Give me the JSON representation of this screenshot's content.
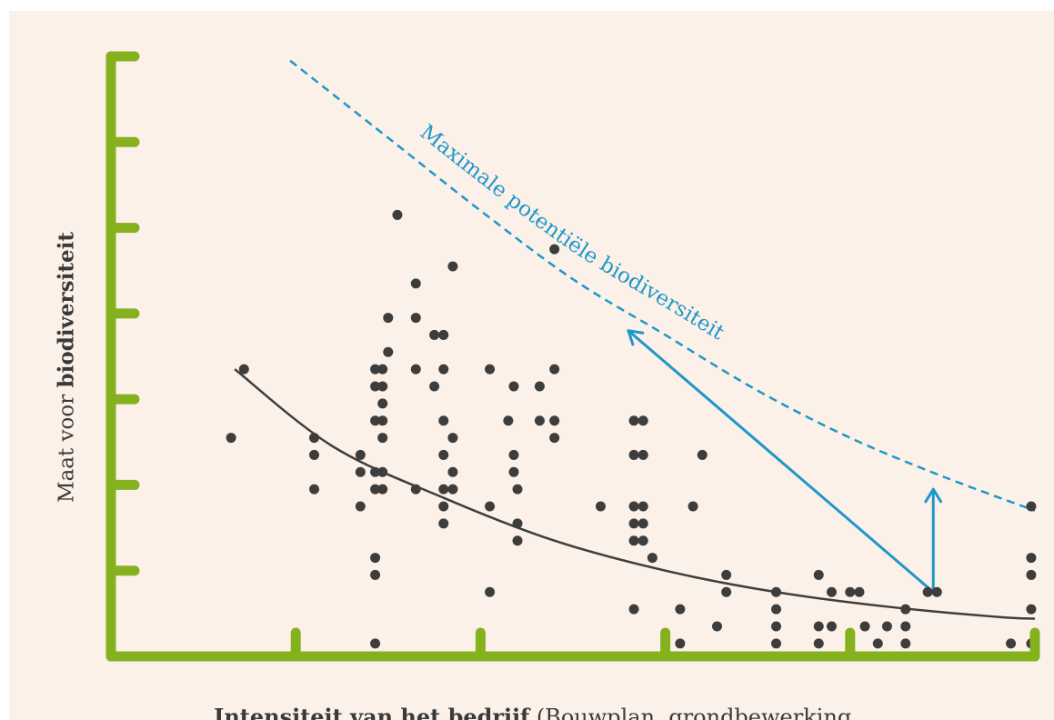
{
  "chart_data": {
    "type": "scatter",
    "title": "",
    "xlabel": "Intensiteit van het bedrijf (Bouwplan, grondbewerking,",
    "xlabel_parts": {
      "bold": "Intensiteit van het bedrijf",
      "normal": " (Bouwplan, grondbewerking,"
    },
    "ylabel": "Maat voor biodiversiteit",
    "ylabel_parts": {
      "normal": "Maat voor ",
      "bold": "biodiversiteit"
    },
    "xlim": [
      0,
      5
    ],
    "ylim": [
      0,
      7
    ],
    "x_ticks": [
      1,
      2,
      3,
      4
    ],
    "y_ticks": [
      1,
      2,
      3,
      4,
      5,
      6,
      7
    ],
    "tick_labels_shown": false,
    "grid": false,
    "colors": {
      "axis": "#86b11f",
      "points": "#3d3d3d",
      "trend": "#3d3d3d",
      "potential": "#1e97c9",
      "background": "#fcf1e8"
    },
    "series": [
      {
        "name": "",
        "type": "scatter",
        "points": [
          [
            0.65,
            2.55
          ],
          [
            0.72,
            3.35
          ],
          [
            1.1,
            2.55
          ],
          [
            1.1,
            2.35
          ],
          [
            1.1,
            1.95
          ],
          [
            1.35,
            2.35
          ],
          [
            1.35,
            2.15
          ],
          [
            1.35,
            1.75
          ],
          [
            1.43,
            3.35
          ],
          [
            1.43,
            3.15
          ],
          [
            1.43,
            2.75
          ],
          [
            1.43,
            2.15
          ],
          [
            1.43,
            1.95
          ],
          [
            1.43,
            1.15
          ],
          [
            1.43,
            0.95
          ],
          [
            1.43,
            0.15
          ],
          [
            1.47,
            3.35
          ],
          [
            1.47,
            3.15
          ],
          [
            1.47,
            2.95
          ],
          [
            1.47,
            2.75
          ],
          [
            1.47,
            2.55
          ],
          [
            1.47,
            2.15
          ],
          [
            1.47,
            1.95
          ],
          [
            1.5,
            3.95
          ],
          [
            1.5,
            3.55
          ],
          [
            1.55,
            5.15
          ],
          [
            1.65,
            4.35
          ],
          [
            1.65,
            3.95
          ],
          [
            1.65,
            3.35
          ],
          [
            1.65,
            1.95
          ],
          [
            1.75,
            3.15
          ],
          [
            1.75,
            3.75
          ],
          [
            1.8,
            3.75
          ],
          [
            1.8,
            3.35
          ],
          [
            1.8,
            2.75
          ],
          [
            1.8,
            2.35
          ],
          [
            1.8,
            1.95
          ],
          [
            1.8,
            1.75
          ],
          [
            1.8,
            1.55
          ],
          [
            1.85,
            2.55
          ],
          [
            1.85,
            2.15
          ],
          [
            1.85,
            1.95
          ],
          [
            1.85,
            4.55
          ],
          [
            2.05,
            3.35
          ],
          [
            2.05,
            1.75
          ],
          [
            2.05,
            0.75
          ],
          [
            2.15,
            2.75
          ],
          [
            2.18,
            3.15
          ],
          [
            2.18,
            2.35
          ],
          [
            2.18,
            2.15
          ],
          [
            2.2,
            1.95
          ],
          [
            2.2,
            1.55
          ],
          [
            2.2,
            1.35
          ],
          [
            2.32,
            3.15
          ],
          [
            2.32,
            2.75
          ],
          [
            2.4,
            3.35
          ],
          [
            2.4,
            2.75
          ],
          [
            2.4,
            2.55
          ],
          [
            2.4,
            4.75
          ],
          [
            2.65,
            1.75
          ],
          [
            2.83,
            2.75
          ],
          [
            2.83,
            2.35
          ],
          [
            2.83,
            1.75
          ],
          [
            2.83,
            1.55
          ],
          [
            2.83,
            1.35
          ],
          [
            2.83,
            0.55
          ],
          [
            2.88,
            2.75
          ],
          [
            2.88,
            2.35
          ],
          [
            2.88,
            1.75
          ],
          [
            2.88,
            1.55
          ],
          [
            2.88,
            1.35
          ],
          [
            2.93,
            1.15
          ],
          [
            3.08,
            0.55
          ],
          [
            3.08,
            0.15
          ],
          [
            3.15,
            1.75
          ],
          [
            3.2,
            2.35
          ],
          [
            3.28,
            0.35
          ],
          [
            3.33,
            0.95
          ],
          [
            3.33,
            0.75
          ],
          [
            3.6,
            0.75
          ],
          [
            3.6,
            0.55
          ],
          [
            3.6,
            0.35
          ],
          [
            3.6,
            0.15
          ],
          [
            3.83,
            0.95
          ],
          [
            3.83,
            0.35
          ],
          [
            3.83,
            0.15
          ],
          [
            3.9,
            0.75
          ],
          [
            3.9,
            0.35
          ],
          [
            4.0,
            0.75
          ],
          [
            4.05,
            0.75
          ],
          [
            4.08,
            0.35
          ],
          [
            4.15,
            0.15
          ],
          [
            4.2,
            0.35
          ],
          [
            4.3,
            0.55
          ],
          [
            4.3,
            0.35
          ],
          [
            4.3,
            0.15
          ],
          [
            4.42,
            0.75
          ],
          [
            4.47,
            0.75
          ],
          [
            4.87,
            0.15
          ],
          [
            4.98,
            1.75
          ],
          [
            4.98,
            1.15
          ],
          [
            4.98,
            0.95
          ],
          [
            4.98,
            0.55
          ],
          [
            4.98,
            0.15
          ]
        ]
      }
    ],
    "trend_curve": {
      "x": [
        0.67,
        1.2,
        1.8,
        2.4,
        3.0,
        3.6,
        4.2,
        4.8,
        5.0
      ],
      "y": [
        3.35,
        2.45,
        1.85,
        1.35,
        1.0,
        0.75,
        0.58,
        0.46,
        0.44
      ]
    },
    "potential_curve": {
      "label": "Maximale potentiële biodiversiteit",
      "x": [
        0.97,
        1.5,
        2.0,
        2.5,
        3.0,
        3.5,
        4.0,
        4.5,
        5.0
      ],
      "y": [
        6.95,
        6.05,
        5.2,
        4.4,
        3.75,
        3.1,
        2.55,
        2.1,
        1.7
      ]
    },
    "arrows": [
      {
        "from": [
          4.45,
          0.75
        ],
        "to": [
          2.8,
          3.8
        ]
      },
      {
        "from": [
          4.45,
          0.75
        ],
        "to": [
          4.45,
          1.95
        ]
      }
    ]
  }
}
